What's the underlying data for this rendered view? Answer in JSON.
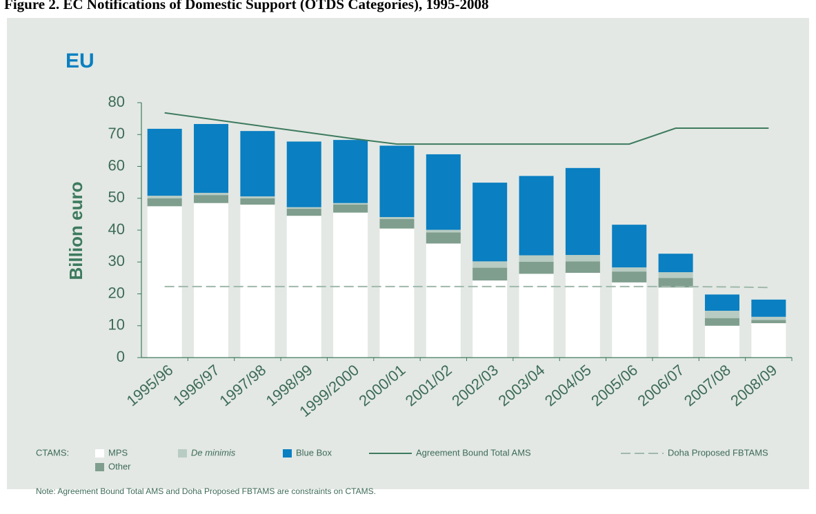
{
  "chart_data": {
    "type": "bar",
    "title": "Figure 2.  EC Notifications of Domestic Support (OTDS Categories), 1995-2008",
    "subtitle": "EU",
    "y_label": "Billion euro",
    "legend_title": "CTAMS:",
    "note": "Note: Agreement Bound Total AMS and Doha Proposed FBTAMS are constraints on CTAMS.",
    "categories": [
      "1995/96",
      "1996/97",
      "1997/98",
      "1998/99",
      "1999/2000",
      "2000/01",
      "2001/02",
      "2002/03",
      "2003/04",
      "2004/05",
      "2005/06",
      "2006/07",
      "2007/08",
      "2008/09"
    ],
    "series": [
      {
        "name": "MPS",
        "type": "bar",
        "color": "#ffffff",
        "values": [
          47.5,
          48.5,
          48,
          44.5,
          45.5,
          40.5,
          35.8,
          24.2,
          26.3,
          26.6,
          23.6,
          22,
          10,
          10.8
        ]
      },
      {
        "name": "Other",
        "type": "bar",
        "color": "#7f9e8e",
        "values": [
          2.5,
          2.5,
          2,
          2.2,
          2.5,
          3,
          3.5,
          4,
          3.8,
          3.6,
          3.4,
          3,
          2.4,
          1
        ]
      },
      {
        "name": "De minimis",
        "type": "bar",
        "color": "#b8ccc3",
        "values": [
          0.8,
          0.7,
          0.6,
          0.5,
          0.5,
          0.6,
          0.8,
          2,
          2,
          2,
          1.3,
          1.8,
          2.3,
          1
        ]
      },
      {
        "name": "Blue Box",
        "type": "bar",
        "color": "#0a7fc1",
        "values": [
          21,
          21.6,
          20.5,
          20.6,
          19.8,
          22.4,
          23.7,
          24.7,
          24.9,
          27.3,
          13.4,
          5.8,
          5.1,
          5.4
        ]
      },
      {
        "name": "Agreement Bound Total  AMS",
        "type": "line",
        "line_style": "solid",
        "color": "#3d7a5e",
        "values": [
          76.8,
          74.8,
          72.8,
          70.8,
          68.8,
          67,
          67,
          67,
          67,
          67,
          67,
          72,
          72,
          72
        ]
      },
      {
        "name": "Doha Proposed FBTAMS",
        "type": "line",
        "line_style": "dashed",
        "color": "#9fb8ab",
        "values": [
          22.3,
          22.3,
          22.3,
          22.3,
          22.3,
          22.3,
          22.3,
          22.3,
          22.3,
          22.3,
          22.3,
          22.3,
          22.2,
          22
        ]
      }
    ],
    "ylim": [
      0,
      80
    ],
    "yticks": [
      0,
      10,
      20,
      30,
      40,
      50,
      60,
      70,
      80
    ],
    "grid": false
  }
}
